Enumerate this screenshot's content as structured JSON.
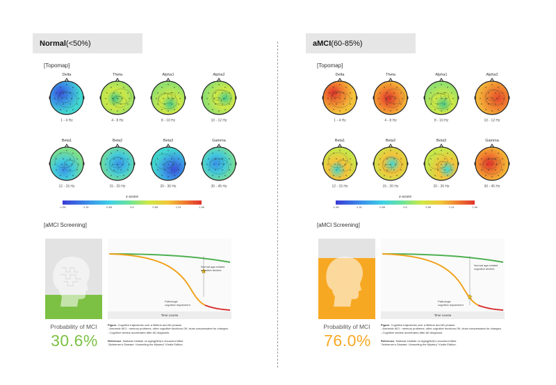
{
  "left": {
    "title_bold": "Normal",
    "title_rest": "(<50%)",
    "topomap_label": "[Topomap]",
    "topomaps": [
      {
        "band": "Delta",
        "freq": "1 - 4 Hz",
        "palette": "cool"
      },
      {
        "band": "Theta",
        "freq": "4 - 8 Hz",
        "palette": "mid"
      },
      {
        "band": "Alpha1",
        "freq": "8 - 10 Hz",
        "palette": "mid"
      },
      {
        "band": "Alpha2",
        "freq": "10 - 12 Hz",
        "palette": "mid"
      },
      {
        "band": "Beta1",
        "freq": "12 - 15 Hz",
        "palette": "coolmid"
      },
      {
        "band": "Beta2",
        "freq": "15 - 20 Hz",
        "palette": "coolmid"
      },
      {
        "band": "Beta3",
        "freq": "20 - 30 Hz",
        "palette": "cool"
      },
      {
        "band": "Gamma",
        "freq": "30 - 45 Hz",
        "palette": "coolmid"
      }
    ],
    "zscore_label": "z-score",
    "scale_ticks": [
      "-1.96",
      "-1.31",
      "-0.65",
      "0.0",
      "0.65",
      "1.31",
      "1.96"
    ],
    "screening_label": "[aMCI Screening]",
    "probability_label": "Probability of MCI",
    "probability_value": "30.6%",
    "probability_fraction": 0.306,
    "accent": "#7cc144",
    "normal_label_1": "Normal age-related",
    "normal_label_2": "cognitive decline",
    "patho_label_1": "Pathologic",
    "patho_label_2": "cognitive impairment",
    "time_course": "Time course",
    "fig_bold": "Figure",
    "fig_text": ": Cognitive trajectories over a lifetime and AD phases.",
    "fig_line2": "- Amnestic MCI : memory problems, other cognitive functions OK; brain compensates for changes.",
    "fig_line3": "- Cognitive decline accelerates after AD diagnosis.",
    "ref_bold": "Reference",
    "ref_text": ": National Institute on Aging(NIA)'s document titled",
    "ref_line2": "\"Alzheimer's Disease: Unraveling the Mystery\" Kindle Edition."
  },
  "right": {
    "title_bold": "aMCI",
    "title_rest": "(60-85%)",
    "topomap_label": "[Topomap]",
    "topomaps": [
      {
        "band": "Delta",
        "freq": "1 - 4 Hz",
        "palette": "warm"
      },
      {
        "band": "Theta",
        "freq": "4 - 8 Hz",
        "palette": "warm"
      },
      {
        "band": "Alpha1",
        "freq": "8 - 10 Hz",
        "palette": "mid"
      },
      {
        "band": "Alpha2",
        "freq": "10 - 12 Hz",
        "palette": "hot"
      },
      {
        "band": "Beta1",
        "freq": "12 - 15 Hz",
        "palette": "warmmid"
      },
      {
        "band": "Beta2",
        "freq": "15 - 20 Hz",
        "palette": "warmmid"
      },
      {
        "band": "Beta3",
        "freq": "20 - 30 Hz",
        "palette": "warmmid"
      },
      {
        "band": "Gamma",
        "freq": "30 - 45 Hz",
        "palette": "warm"
      }
    ],
    "zscore_label": "z-score",
    "scale_ticks": [
      "-1.96",
      "-1.31",
      "-0.65",
      "0.0",
      "0.65",
      "1.31",
      "1.96"
    ],
    "screening_label": "[aMCI Screening]",
    "probability_label": "Probability of MCI",
    "probability_value": "76.0%",
    "probability_fraction": 0.76,
    "accent": "#f7a823",
    "normal_label_1": "Normal age-related",
    "normal_label_2": "cognitive decline",
    "patho_label_1": "Pathologic",
    "patho_label_2": "cognitive impairment",
    "time_course": "Time course",
    "fig_bold": "Figure",
    "fig_text": ": Cognitive trajectories over a lifetime and AD phases.",
    "fig_line2": "- Amnestic MCI : memory problems, other cognitive functions OK; brain compensates for changes.",
    "fig_line3": "- Cognitive decline accelerates after AD diagnosis.",
    "ref_bold": "Reference",
    "ref_text": ": National Institute on Aging(NIA)'s document titled",
    "ref_line2": "\"Alzheimer's Disease: Unraveling the Mystery\" Kindle Edition."
  },
  "colors": {
    "normal_curve": "#4caf50",
    "patho_curve": "#d62b2b",
    "transition_curve": "#f2a21b",
    "star_fill": "#f0c419"
  }
}
